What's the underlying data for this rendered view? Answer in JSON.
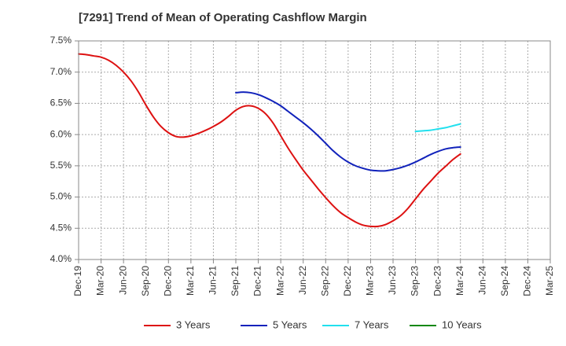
{
  "chart_data": {
    "type": "line",
    "title": "[7291]  Trend of Mean of Operating Cashflow Margin",
    "xlabel": "",
    "ylabel": "",
    "x_ticks": [
      "Dec-19",
      "Mar-20",
      "Jun-20",
      "Sep-20",
      "Dec-20",
      "Mar-21",
      "Jun-21",
      "Sep-21",
      "Dec-21",
      "Mar-22",
      "Jun-22",
      "Sep-22",
      "Dec-22",
      "Mar-23",
      "Jun-23",
      "Sep-23",
      "Dec-23",
      "Mar-24",
      "Jun-24",
      "Sep-24",
      "Dec-24",
      "Mar-25"
    ],
    "y_ticks": [
      "7.5%",
      "7.0%",
      "6.5%",
      "6.0%",
      "5.5%",
      "5.0%",
      "4.5%",
      "4.0%"
    ],
    "ylim": [
      4.0,
      7.5
    ],
    "grid": true,
    "legend_position": "bottom",
    "series": [
      {
        "name": "3 Years",
        "color": "#dd1111",
        "x": [
          "Dec-19",
          "Jan-20",
          "Feb-20",
          "Mar-20",
          "Apr-20",
          "May-20",
          "Jun-20",
          "Jul-20",
          "Aug-20",
          "Sep-20",
          "Oct-20",
          "Nov-20",
          "Dec-20",
          "Jan-21",
          "Feb-21",
          "Mar-21",
          "Apr-21",
          "May-21",
          "Jun-21",
          "Jul-21",
          "Aug-21",
          "Sep-21",
          "Oct-21",
          "Nov-21",
          "Dec-21",
          "Jan-22",
          "Feb-22",
          "Mar-22",
          "Apr-22",
          "May-22",
          "Jun-22",
          "Jul-22",
          "Aug-22",
          "Sep-22",
          "Oct-22",
          "Nov-22",
          "Dec-22",
          "Jan-23",
          "Feb-23",
          "Mar-23",
          "Apr-23",
          "May-23",
          "Jun-23",
          "Jul-23",
          "Aug-23",
          "Sep-23",
          "Oct-23",
          "Nov-23",
          "Dec-23",
          "Jan-24",
          "Feb-24",
          "Mar-24"
        ],
        "values": [
          7.29,
          7.28,
          7.26,
          7.24,
          7.19,
          7.11,
          7.0,
          6.86,
          6.68,
          6.47,
          6.28,
          6.13,
          6.03,
          5.97,
          5.96,
          5.98,
          6.02,
          6.07,
          6.13,
          6.2,
          6.29,
          6.39,
          6.45,
          6.46,
          6.42,
          6.33,
          6.18,
          5.98,
          5.78,
          5.6,
          5.43,
          5.28,
          5.13,
          4.99,
          4.86,
          4.75,
          4.67,
          4.6,
          4.55,
          4.53,
          4.53,
          4.56,
          4.62,
          4.7,
          4.82,
          4.97,
          5.12,
          5.25,
          5.38,
          5.49,
          5.6,
          5.69
        ]
      },
      {
        "name": "5 Years",
        "color": "#1122bb",
        "x": [
          "Sep-21",
          "Oct-21",
          "Nov-21",
          "Dec-21",
          "Jan-22",
          "Feb-22",
          "Mar-22",
          "Apr-22",
          "May-22",
          "Jun-22",
          "Jul-22",
          "Aug-22",
          "Sep-22",
          "Oct-22",
          "Nov-22",
          "Dec-22",
          "Jan-23",
          "Feb-23",
          "Mar-23",
          "Apr-23",
          "May-23",
          "Jun-23",
          "Jul-23",
          "Aug-23",
          "Sep-23",
          "Oct-23",
          "Nov-23",
          "Dec-23",
          "Jan-24",
          "Feb-24",
          "Mar-24"
        ],
        "values": [
          6.67,
          6.68,
          6.67,
          6.64,
          6.59,
          6.53,
          6.46,
          6.37,
          6.28,
          6.19,
          6.09,
          5.98,
          5.86,
          5.74,
          5.64,
          5.56,
          5.5,
          5.46,
          5.43,
          5.42,
          5.42,
          5.44,
          5.47,
          5.51,
          5.56,
          5.62,
          5.68,
          5.73,
          5.77,
          5.79,
          5.8
        ]
      },
      {
        "name": "7 Years",
        "color": "#22e0ee",
        "x": [
          "Sep-23",
          "Oct-23",
          "Nov-23",
          "Dec-23",
          "Jan-24",
          "Feb-24",
          "Mar-24"
        ],
        "values": [
          6.05,
          6.06,
          6.07,
          6.09,
          6.11,
          6.14,
          6.17
        ]
      },
      {
        "name": "10 Years",
        "color": "#118811",
        "x": [],
        "values": []
      }
    ]
  }
}
